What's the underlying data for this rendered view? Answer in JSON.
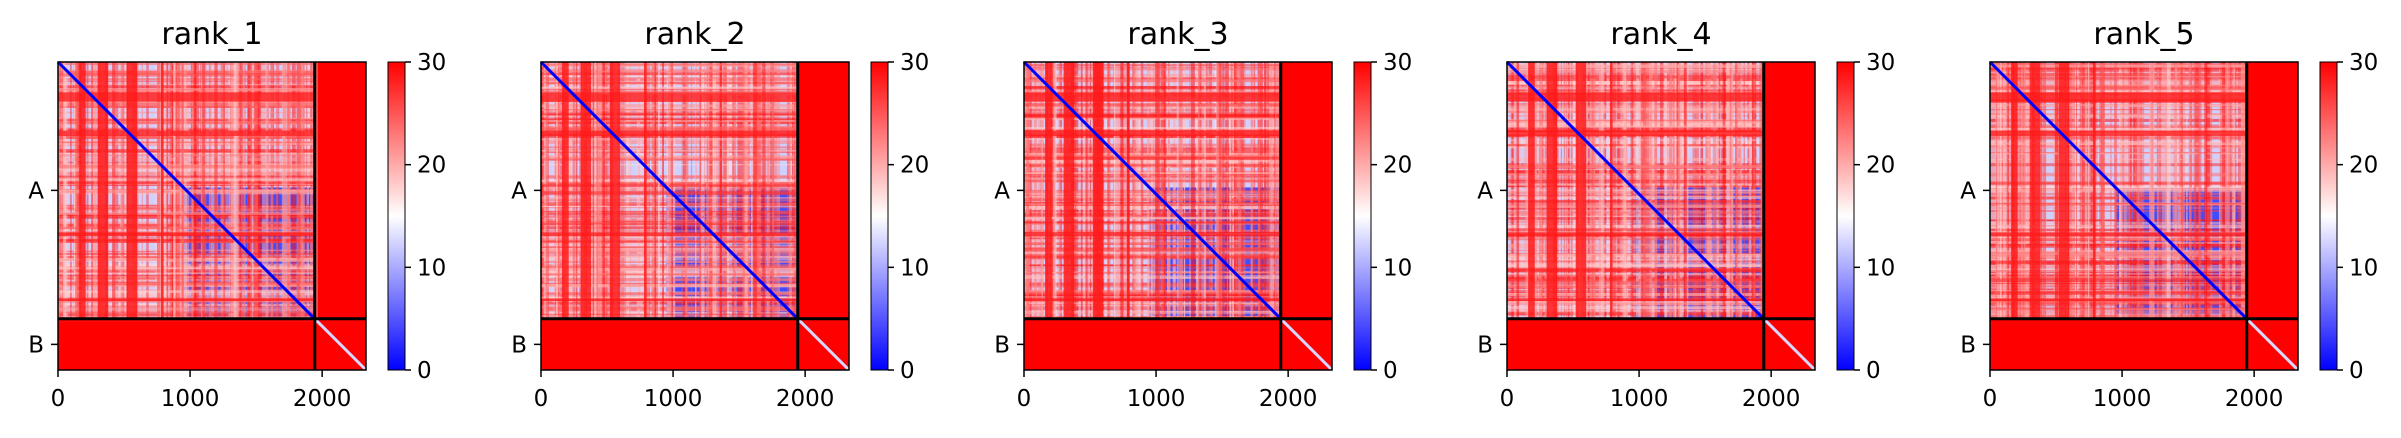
{
  "chart_data": [
    {
      "type": "heatmap",
      "title": "rank_1",
      "xlabel": "",
      "ylabel": "",
      "xlim": [
        0,
        2332
      ],
      "xticks": [
        0,
        1000,
        2000
      ],
      "xtick_labels": [
        "0",
        "1000",
        "2000"
      ],
      "yticks_labels": [
        "A",
        "B"
      ],
      "chain_boundaries": [
        1944
      ],
      "colorbar": {
        "min": 0,
        "max": 30,
        "ticks": [
          0,
          10,
          20,
          30
        ],
        "colors": [
          "#0000ff",
          "#ffffff",
          "#ff0000"
        ]
      }
    },
    {
      "type": "heatmap",
      "title": "rank_2",
      "xlabel": "",
      "ylabel": "",
      "xlim": [
        0,
        2332
      ],
      "xticks": [
        0,
        1000,
        2000
      ],
      "xtick_labels": [
        "0",
        "1000",
        "2000"
      ],
      "yticks_labels": [
        "A",
        "B"
      ],
      "chain_boundaries": [
        1944
      ],
      "colorbar": {
        "min": 0,
        "max": 30,
        "ticks": [
          0,
          10,
          20,
          30
        ],
        "colors": [
          "#0000ff",
          "#ffffff",
          "#ff0000"
        ]
      }
    },
    {
      "type": "heatmap",
      "title": "rank_3",
      "xlabel": "",
      "ylabel": "",
      "xlim": [
        0,
        2332
      ],
      "xticks": [
        0,
        1000,
        2000
      ],
      "xtick_labels": [
        "0",
        "1000",
        "2000"
      ],
      "yticks_labels": [
        "A",
        "B"
      ],
      "chain_boundaries": [
        1944
      ],
      "colorbar": {
        "min": 0,
        "max": 30,
        "ticks": [
          0,
          10,
          20,
          30
        ],
        "colors": [
          "#0000ff",
          "#ffffff",
          "#ff0000"
        ]
      }
    },
    {
      "type": "heatmap",
      "title": "rank_4",
      "xlabel": "",
      "ylabel": "",
      "xlim": [
        0,
        2332
      ],
      "xticks": [
        0,
        1000,
        2000
      ],
      "xtick_labels": [
        "0",
        "1000",
        "2000"
      ],
      "yticks_labels": [
        "A",
        "B"
      ],
      "chain_boundaries": [
        1944
      ],
      "colorbar": {
        "min": 0,
        "max": 30,
        "ticks": [
          0,
          10,
          20,
          30
        ],
        "colors": [
          "#0000ff",
          "#ffffff",
          "#ff0000"
        ]
      }
    },
    {
      "type": "heatmap",
      "title": "rank_5",
      "xlabel": "",
      "ylabel": "",
      "xlim": [
        0,
        2332
      ],
      "xticks": [
        0,
        1000,
        2000
      ],
      "xtick_labels": [
        "0",
        "1000",
        "2000"
      ],
      "yticks_labels": [
        "A",
        "B"
      ],
      "chain_boundaries": [
        1944
      ],
      "colorbar": {
        "min": 0,
        "max": 30,
        "ticks": [
          0,
          10,
          20,
          30
        ],
        "colors": [
          "#0000ff",
          "#ffffff",
          "#ff0000"
        ]
      }
    }
  ]
}
